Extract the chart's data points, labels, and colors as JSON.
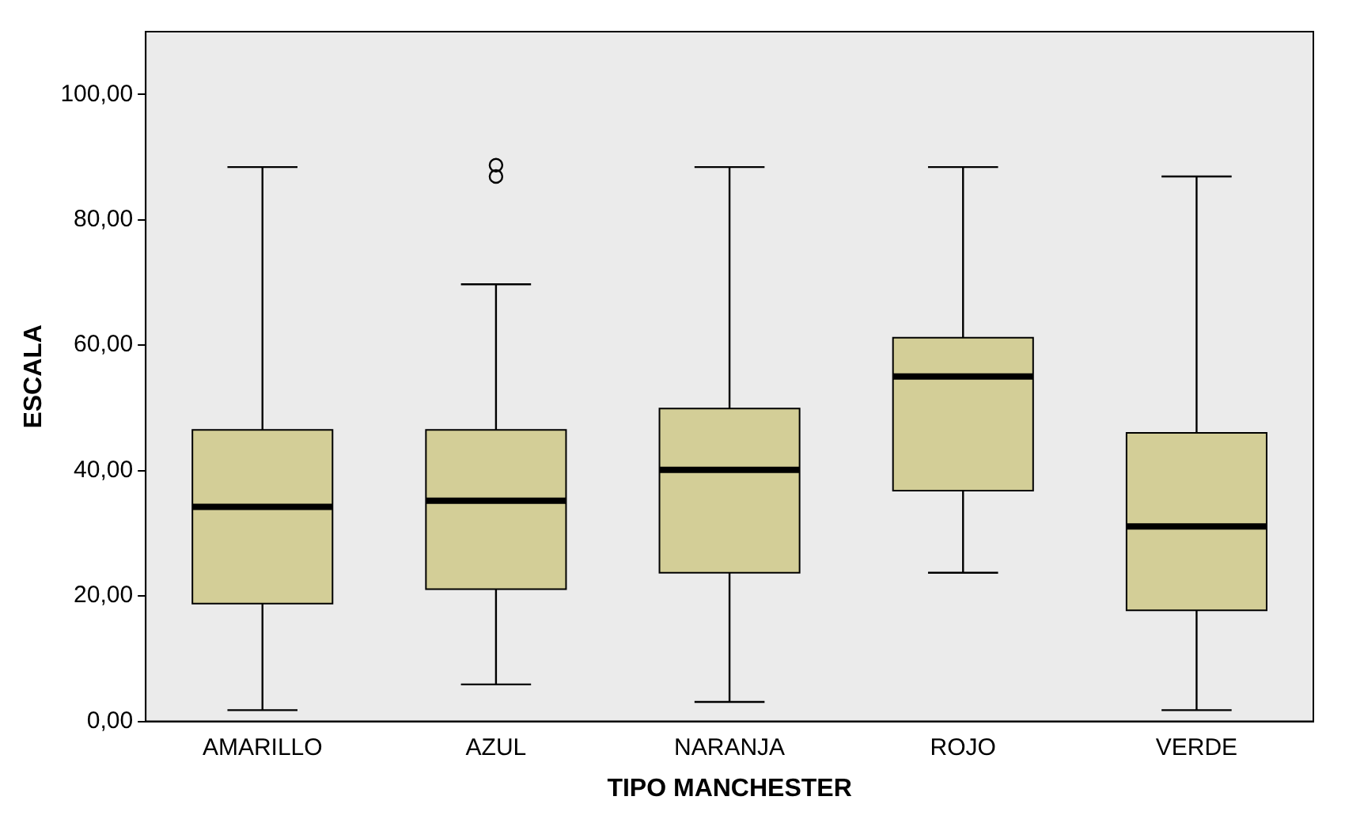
{
  "chart_data": {
    "type": "box",
    "xlabel": "TIPO MANCHESTER",
    "ylabel": "ESCALA",
    "categories": [
      "AMARILLO",
      "AZUL",
      "NARANJA",
      "ROJO",
      "VERDE"
    ],
    "color": "#d3ce97",
    "boxes": [
      {
        "low": 1.8,
        "q1": 18.8,
        "median": 34.2,
        "q3": 46.5,
        "high": 88.4
      },
      {
        "low": 5.9,
        "q1": 21.1,
        "median": 35.2,
        "q3": 46.5,
        "high": 69.7,
        "outliers": [
          86.9,
          88.7
        ]
      },
      {
        "low": 3.1,
        "q1": 23.7,
        "median": 40.1,
        "q3": 49.9,
        "high": 88.4
      },
      {
        "low": 23.7,
        "q1": 36.8,
        "median": 55.0,
        "q3": 61.2,
        "high": 88.4
      },
      {
        "low": 1.8,
        "q1": 17.7,
        "median": 31.1,
        "q3": 46.0,
        "high": 86.9
      }
    ],
    "ylim": [
      0,
      110
    ],
    "yticks": [
      {
        "value": 0,
        "label": "0,00"
      },
      {
        "value": 20,
        "label": "20,00"
      },
      {
        "value": 40,
        "label": "40,00"
      },
      {
        "value": 60,
        "label": "60,00"
      },
      {
        "value": 80,
        "label": "80,00"
      },
      {
        "value": 100,
        "label": "100,00"
      }
    ],
    "grid": false,
    "legend": false
  }
}
